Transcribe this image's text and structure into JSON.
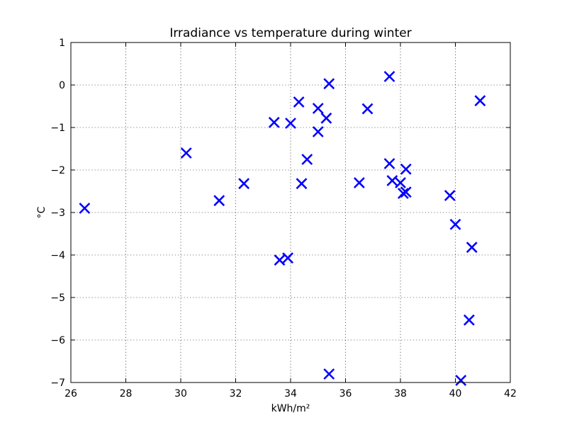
{
  "chart_data": {
    "type": "scatter",
    "title": "Irradiance vs temperature during winter",
    "xlabel": "kWh/m²",
    "ylabel": "°C",
    "xlim": [
      26,
      42
    ],
    "ylim": [
      -7,
      1
    ],
    "xticks": [
      26,
      28,
      30,
      32,
      34,
      36,
      38,
      40,
      42
    ],
    "yticks": [
      1,
      0,
      -1,
      -2,
      -3,
      -4,
      -5,
      -6,
      -7
    ],
    "xtick_labels": [
      "26",
      "28",
      "30",
      "32",
      "34",
      "36",
      "38",
      "40",
      "42"
    ],
    "ytick_labels": [
      "1",
      "0",
      "−1",
      "−2",
      "−3",
      "−4",
      "−5",
      "−6",
      "−7"
    ],
    "grid": true,
    "marker": "x",
    "color": "#0000ff",
    "points": [
      {
        "x": 26.5,
        "y": -2.9
      },
      {
        "x": 30.2,
        "y": -1.6
      },
      {
        "x": 31.4,
        "y": -2.72
      },
      {
        "x": 32.3,
        "y": -2.32
      },
      {
        "x": 33.4,
        "y": -0.88
      },
      {
        "x": 33.6,
        "y": -4.12
      },
      {
        "x": 33.9,
        "y": -4.07
      },
      {
        "x": 34.0,
        "y": -0.9
      },
      {
        "x": 34.3,
        "y": -0.4
      },
      {
        "x": 34.4,
        "y": -2.32
      },
      {
        "x": 34.6,
        "y": -1.75
      },
      {
        "x": 35.0,
        "y": -0.55
      },
      {
        "x": 35.0,
        "y": -1.1
      },
      {
        "x": 35.3,
        "y": -0.78
      },
      {
        "x": 35.4,
        "y": 0.03
      },
      {
        "x": 35.4,
        "y": -6.8
      },
      {
        "x": 36.5,
        "y": -2.3
      },
      {
        "x": 36.8,
        "y": -0.56
      },
      {
        "x": 37.6,
        "y": 0.2
      },
      {
        "x": 37.6,
        "y": -1.85
      },
      {
        "x": 37.7,
        "y": -2.25
      },
      {
        "x": 38.0,
        "y": -2.3
      },
      {
        "x": 38.1,
        "y": -2.55
      },
      {
        "x": 38.2,
        "y": -2.52
      },
      {
        "x": 38.2,
        "y": -1.98
      },
      {
        "x": 39.8,
        "y": -2.6
      },
      {
        "x": 40.0,
        "y": -3.28
      },
      {
        "x": 40.2,
        "y": -6.95
      },
      {
        "x": 40.5,
        "y": -5.53
      },
      {
        "x": 40.6,
        "y": -3.82
      },
      {
        "x": 40.9,
        "y": -0.37
      }
    ]
  }
}
